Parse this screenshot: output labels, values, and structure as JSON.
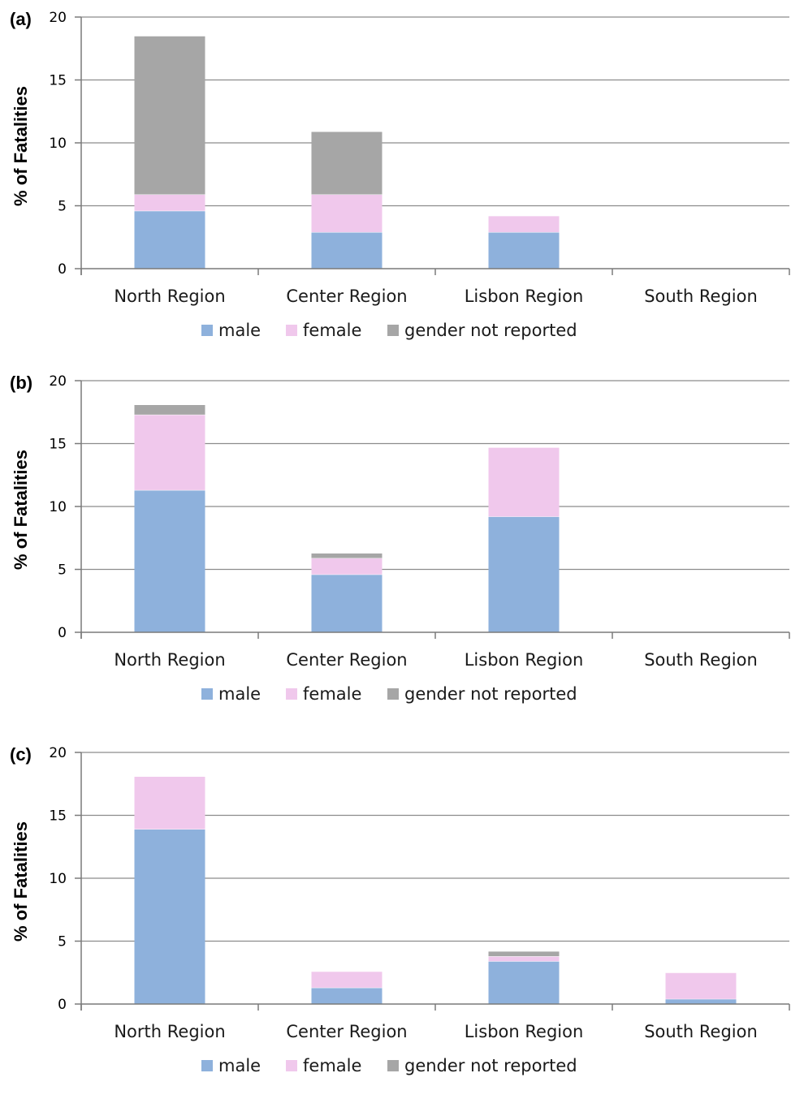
{
  "chart_data": [
    {
      "type": "bar",
      "stacked": true,
      "panel_label": "(a)",
      "ylabel": "% of Fatalities",
      "xlabel": "",
      "ylim": [
        0,
        20
      ],
      "yticks": [
        0,
        5,
        10,
        15,
        20
      ],
      "grid": true,
      "legend_position": "bottom",
      "categories": [
        "North Region",
        "Center Region",
        "Lisbon Region",
        "South Region"
      ],
      "series": [
        {
          "name": "male",
          "color": "#8eb1dc",
          "values": [
            4.6,
            2.9,
            2.9,
            0
          ]
        },
        {
          "name": "female",
          "color": "#f0c8ec",
          "values": [
            1.3,
            3.0,
            1.3,
            0
          ]
        },
        {
          "name": "gender not reported",
          "color": "#a6a6a6",
          "values": [
            12.6,
            5.0,
            0,
            0
          ]
        }
      ]
    },
    {
      "type": "bar",
      "stacked": true,
      "panel_label": "(b)",
      "ylabel": "% of Fatalities",
      "xlabel": "",
      "ylim": [
        0,
        20
      ],
      "yticks": [
        0,
        5,
        10,
        15,
        20
      ],
      "grid": true,
      "legend_position": "bottom",
      "categories": [
        "North Region",
        "Center Region",
        "Lisbon Region",
        "South Region"
      ],
      "series": [
        {
          "name": "male",
          "color": "#8eb1dc",
          "values": [
            11.3,
            4.6,
            9.2,
            0
          ]
        },
        {
          "name": "female",
          "color": "#f0c8ec",
          "values": [
            6.0,
            1.3,
            5.5,
            0
          ]
        },
        {
          "name": "gender not reported",
          "color": "#a6a6a6",
          "values": [
            0.8,
            0.4,
            0,
            0
          ]
        }
      ]
    },
    {
      "type": "bar",
      "stacked": true,
      "panel_label": "(c)",
      "ylabel": "% of Fatalities",
      "xlabel": "",
      "ylim": [
        0,
        20
      ],
      "yticks": [
        0,
        5,
        10,
        15,
        20
      ],
      "grid": true,
      "legend_position": "bottom",
      "categories": [
        "North Region",
        "Center Region",
        "Lisbon Region",
        "South Region"
      ],
      "series": [
        {
          "name": "male",
          "color": "#8eb1dc",
          "values": [
            13.9,
            1.3,
            3.4,
            0.4
          ]
        },
        {
          "name": "female",
          "color": "#f0c8ec",
          "values": [
            4.2,
            1.3,
            0.4,
            2.1
          ]
        },
        {
          "name": "gender not reported",
          "color": "#a6a6a6",
          "values": [
            0,
            0,
            0.4,
            0
          ]
        }
      ]
    }
  ]
}
